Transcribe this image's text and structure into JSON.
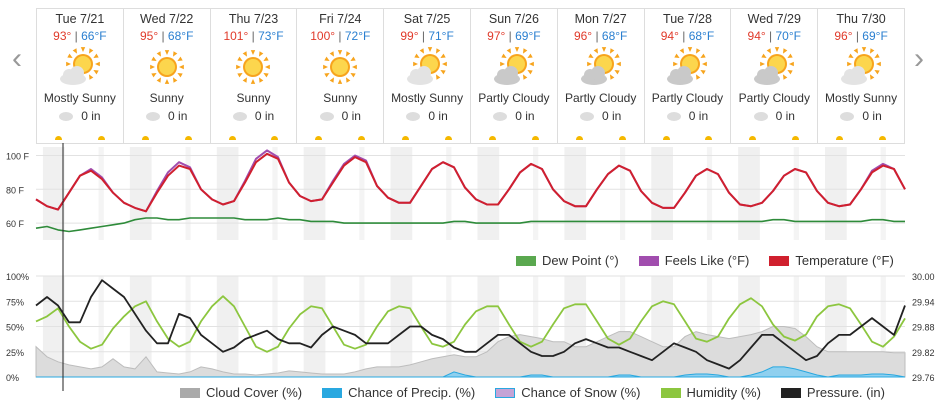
{
  "nav": {
    "prev": "‹",
    "next": "›"
  },
  "days": [
    {
      "date": "Tue 7/21",
      "hi": "93°",
      "lo": "66°F",
      "cond": "Mostly Sunny",
      "icon": "partly-sunny-icon",
      "precip": "0 in"
    },
    {
      "date": "Wed 7/22",
      "hi": "95°",
      "lo": "68°F",
      "cond": "Sunny",
      "icon": "sunny-icon",
      "precip": "0 in"
    },
    {
      "date": "Thu 7/23",
      "hi": "101°",
      "lo": "73°F",
      "cond": "Sunny",
      "icon": "sunny-icon",
      "precip": "0 in"
    },
    {
      "date": "Fri 7/24",
      "hi": "100°",
      "lo": "72°F",
      "cond": "Sunny",
      "icon": "sunny-icon",
      "precip": "0 in"
    },
    {
      "date": "Sat 7/25",
      "hi": "99°",
      "lo": "71°F",
      "cond": "Mostly Sunny",
      "icon": "partly-sunny-icon",
      "precip": "0 in"
    },
    {
      "date": "Sun 7/26",
      "hi": "97°",
      "lo": "69°F",
      "cond": "Partly Cloudy",
      "icon": "partly-cloudy-icon",
      "precip": "0 in"
    },
    {
      "date": "Mon 7/27",
      "hi": "96°",
      "lo": "68°F",
      "cond": "Partly Cloudy",
      "icon": "partly-cloudy-icon",
      "precip": "0 in"
    },
    {
      "date": "Tue 7/28",
      "hi": "94°",
      "lo": "68°F",
      "cond": "Partly Cloudy",
      "icon": "partly-cloudy-icon",
      "precip": "0 in"
    },
    {
      "date": "Wed 7/29",
      "hi": "94°",
      "lo": "70°F",
      "cond": "Partly Cloudy",
      "icon": "partly-cloudy-icon",
      "precip": "0 in"
    },
    {
      "date": "Thu 7/30",
      "hi": "96°",
      "lo": "69°F",
      "cond": "Mostly Sunny",
      "icon": "partly-sunny-icon",
      "precip": "0 in"
    }
  ],
  "chart_data": [
    {
      "type": "line",
      "yticks": [
        "100 F",
        "80 F",
        "60 F"
      ],
      "ylim": [
        50,
        105
      ],
      "x": "hours from start of Tue 7/21 (3-hour steps)",
      "series": [
        {
          "name": "Temperature (°F)",
          "color": "#d0202e",
          "values": [
            74,
            70,
            68,
            78,
            88,
            91,
            86,
            78,
            72,
            69,
            67,
            78,
            88,
            94,
            92,
            80,
            74,
            71,
            73,
            84,
            96,
            101,
            98,
            84,
            76,
            73,
            74,
            84,
            94,
            99,
            96,
            82,
            75,
            72,
            72,
            82,
            92,
            96,
            93,
            81,
            74,
            71,
            71,
            80,
            90,
            95,
            92,
            80,
            73,
            70,
            70,
            80,
            89,
            94,
            91,
            79,
            72,
            69,
            69,
            78,
            88,
            92,
            89,
            78,
            71,
            70,
            72,
            79,
            88,
            92,
            90,
            79,
            72,
            70,
            71,
            80,
            90,
            94,
            92,
            80
          ]
        },
        {
          "name": "Feels Like (°F)",
          "color": "#a14dae",
          "values": [
            74,
            70,
            68,
            78,
            88,
            92,
            87,
            78,
            72,
            69,
            67,
            79,
            90,
            96,
            93,
            80,
            74,
            71,
            73,
            85,
            98,
            103,
            99,
            84,
            76,
            73,
            74,
            85,
            95,
            100,
            97,
            82,
            75,
            72,
            72,
            82,
            92,
            96,
            93,
            81,
            74,
            71,
            71,
            80,
            90,
            95,
            92,
            80,
            73,
            70,
            70,
            80,
            89,
            94,
            91,
            79,
            72,
            69,
            69,
            78,
            88,
            92,
            89,
            78,
            71,
            70,
            72,
            79,
            88,
            92,
            90,
            79,
            72,
            70,
            71,
            80,
            91,
            95,
            92,
            80
          ]
        },
        {
          "name": "Dew Point (°)",
          "color": "#2e8b3a",
          "values": [
            57,
            58,
            56,
            55,
            56,
            57,
            58,
            59,
            60,
            62,
            63,
            63,
            62,
            62,
            63,
            63,
            63,
            63,
            63,
            62,
            62,
            62,
            63,
            62,
            62,
            61,
            61,
            61,
            60,
            60,
            60,
            60,
            60,
            60,
            60,
            60,
            60,
            60,
            61,
            61,
            60,
            60,
            60,
            60,
            60,
            61,
            61,
            61,
            61,
            61,
            61,
            61,
            61,
            61,
            61,
            61,
            61,
            61,
            61,
            61,
            61,
            61,
            61,
            61,
            61,
            61,
            61,
            62,
            62,
            61,
            61,
            61,
            61,
            61,
            61,
            61,
            62,
            62,
            61,
            61
          ]
        }
      ],
      "legend": [
        "Dew Point (°)",
        "Feels Like (°F)",
        "Temperature (°F)"
      ]
    },
    {
      "type": "line",
      "yticks_left": [
        "100%",
        "75%",
        "50%",
        "25%",
        "0%"
      ],
      "yticks_right": [
        "30.00",
        "29.94",
        "29.88",
        "29.82",
        "29.76"
      ],
      "ylim_left": [
        0,
        100
      ],
      "ylim_right": [
        29.76,
        30.0
      ],
      "series": [
        {
          "name": "Cloud Cover (%)",
          "color": "#bdbdbd",
          "axis": "left",
          "values": [
            30,
            20,
            15,
            12,
            10,
            8,
            10,
            18,
            10,
            8,
            20,
            5,
            4,
            3,
            5,
            10,
            8,
            5,
            3,
            3,
            2,
            3,
            4,
            6,
            5,
            4,
            3,
            3,
            3,
            5,
            8,
            10,
            10,
            10,
            12,
            15,
            18,
            20,
            22,
            20,
            20,
            25,
            35,
            40,
            42,
            40,
            38,
            35,
            35,
            30,
            30,
            35,
            40,
            45,
            45,
            40,
            35,
            30,
            30,
            40,
            45,
            42,
            40,
            38,
            40,
            42,
            45,
            50,
            50,
            48,
            40,
            30,
            25,
            25,
            25,
            25,
            25,
            25,
            24,
            24
          ]
        },
        {
          "name": "Chance of Precip. (%)",
          "color": "#29a8e0",
          "axis": "left",
          "values": [
            0,
            0,
            0,
            0,
            0,
            0,
            0,
            0,
            0,
            0,
            0,
            0,
            0,
            0,
            0,
            0,
            0,
            0,
            0,
            0,
            0,
            0,
            0,
            0,
            0,
            0,
            0,
            0,
            0,
            0,
            0,
            0,
            0,
            0,
            0,
            0,
            0,
            0,
            5,
            2,
            0,
            0,
            0,
            0,
            0,
            2,
            2,
            0,
            0,
            0,
            0,
            0,
            0,
            2,
            2,
            0,
            0,
            0,
            0,
            2,
            3,
            3,
            2,
            0,
            0,
            2,
            5,
            10,
            10,
            8,
            5,
            2,
            0,
            2,
            2,
            2,
            3,
            3,
            2,
            0
          ]
        },
        {
          "name": "Chance of Snow (%)",
          "color": "#9fd4ee",
          "axis": "left",
          "values": []
        },
        {
          "name": "Humidity (%)",
          "color": "#8cc63f",
          "axis": "left",
          "values": [
            55,
            60,
            68,
            50,
            35,
            28,
            32,
            48,
            60,
            70,
            75,
            55,
            38,
            30,
            35,
            55,
            70,
            80,
            70,
            50,
            30,
            25,
            30,
            48,
            62,
            70,
            68,
            50,
            32,
            28,
            32,
            50,
            65,
            70,
            68,
            50,
            33,
            30,
            35,
            52,
            65,
            70,
            70,
            52,
            35,
            30,
            35,
            52,
            68,
            72,
            72,
            55,
            38,
            32,
            38,
            55,
            70,
            75,
            72,
            55,
            38,
            35,
            40,
            58,
            72,
            78,
            70,
            52,
            40,
            36,
            42,
            60,
            70,
            72,
            68,
            52,
            35,
            30,
            40,
            58
          ]
        },
        {
          "name": "Pressure. (in)",
          "color": "#222222",
          "axis": "right",
          "values": [
            29.93,
            29.95,
            29.93,
            29.89,
            29.89,
            29.95,
            29.99,
            29.97,
            29.95,
            29.91,
            29.87,
            29.84,
            29.84,
            29.91,
            29.9,
            29.86,
            29.84,
            29.82,
            29.83,
            29.85,
            29.86,
            29.87,
            29.85,
            29.84,
            29.84,
            29.83,
            29.86,
            29.88,
            29.87,
            29.86,
            29.84,
            29.84,
            29.84,
            29.86,
            29.88,
            29.88,
            29.86,
            29.85,
            29.83,
            29.82,
            29.82,
            29.84,
            29.86,
            29.86,
            29.84,
            29.82,
            29.81,
            29.81,
            29.82,
            29.84,
            29.85,
            29.84,
            29.83,
            29.83,
            29.82,
            29.81,
            29.8,
            29.82,
            29.84,
            29.83,
            29.82,
            29.8,
            29.79,
            29.78,
            29.8,
            29.83,
            29.86,
            29.86,
            29.84,
            29.82,
            29.8,
            29.81,
            29.84,
            29.86,
            29.86,
            29.88,
            29.9,
            29.88,
            29.86,
            29.93
          ]
        }
      ],
      "legend": [
        "Cloud Cover (%)",
        "Chance of Precip. (%)",
        "Chance of Snow (%)",
        "Humidity (%)",
        "Pressure. (in)"
      ]
    }
  ]
}
